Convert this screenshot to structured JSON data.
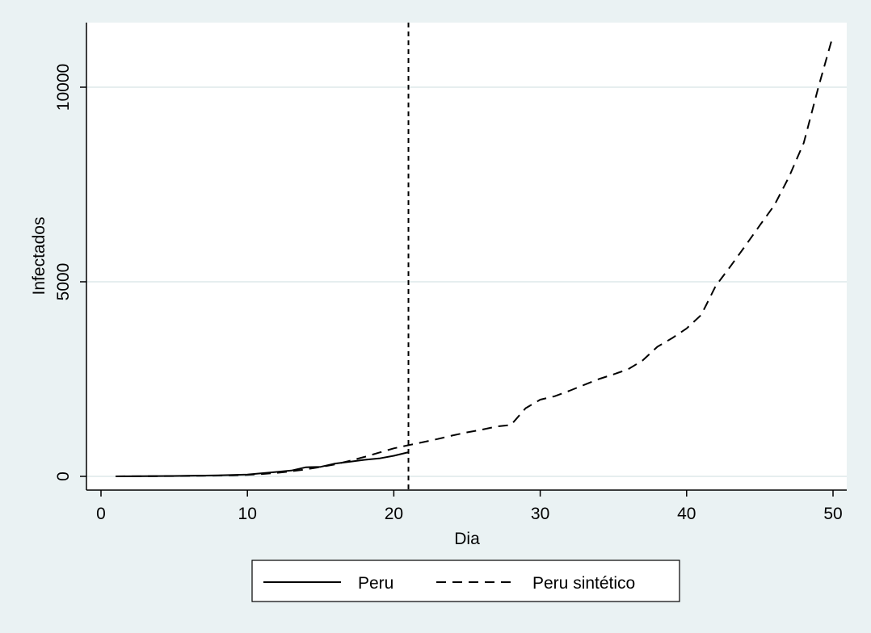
{
  "chart_data": {
    "type": "line",
    "title": "",
    "xlabel": "Dia",
    "ylabel": "Infectados",
    "xlim": [
      0,
      50
    ],
    "ylim": [
      0,
      11500
    ],
    "xticks": [
      0,
      10,
      20,
      30,
      40,
      50
    ],
    "yticks": [
      0,
      5000,
      10000
    ],
    "grid": "horizontal",
    "legend_position": "bottom",
    "treatment_line": 21,
    "series": [
      {
        "name": "Peru",
        "style": "solid",
        "x": [
          1,
          2,
          3,
          4,
          5,
          6,
          7,
          8,
          9,
          10,
          11,
          12,
          13,
          14,
          15,
          16,
          17,
          18,
          19,
          20,
          21
        ],
        "y": [
          1,
          2,
          5,
          8,
          11,
          15,
          20,
          25,
          35,
          45,
          80,
          115,
          150,
          235,
          245,
          330,
          375,
          425,
          460,
          530,
          620
        ]
      },
      {
        "name": "Peru sintético",
        "style": "dashed",
        "x": [
          1,
          2,
          3,
          4,
          5,
          6,
          7,
          8,
          9,
          10,
          11,
          12,
          13,
          14,
          15,
          16,
          17,
          18,
          19,
          20,
          21,
          22,
          23,
          24,
          25,
          26,
          27,
          28,
          29,
          30,
          31,
          32,
          33,
          34,
          35,
          36,
          37,
          38,
          39,
          40,
          41,
          42,
          43,
          44,
          45,
          46,
          47,
          48,
          49,
          50
        ],
        "y": [
          1,
          2,
          4,
          6,
          9,
          12,
          16,
          20,
          28,
          40,
          60,
          90,
          130,
          180,
          240,
          310,
          400,
          500,
          610,
          720,
          800,
          880,
          960,
          1050,
          1130,
          1200,
          1280,
          1320,
          1750,
          1970,
          2060,
          2200,
          2350,
          2500,
          2620,
          2750,
          2980,
          3330,
          3550,
          3800,
          4150,
          4900,
          5400,
          5920,
          6450,
          6970,
          7700,
          8570,
          10000,
          11330
        ]
      }
    ]
  }
}
